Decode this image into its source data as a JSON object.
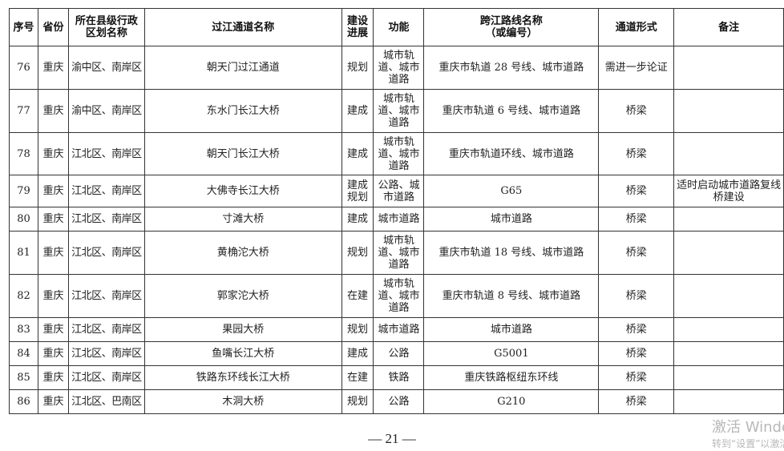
{
  "table": {
    "headers": [
      "序号",
      "省份",
      "所在县级行政区划名称",
      "过江通道名称",
      "建设进展",
      "功能",
      "跨江路线名称（或编号）",
      "通道形式",
      "备注"
    ],
    "rows": [
      {
        "no": "76",
        "province": "重庆",
        "region": "渝中区、南岸区",
        "name": "朝天门过江通道",
        "progress": "规划",
        "function": "城市轨道、城市道路",
        "route": "重庆市轨道 28 号线、城市道路",
        "form": "需进一步论证",
        "note": ""
      },
      {
        "no": "77",
        "province": "重庆",
        "region": "渝中区、南岸区",
        "name": "东水门长江大桥",
        "progress": "建成",
        "function": "城市轨道、城市道路",
        "route": "重庆市轨道 6 号线、城市道路",
        "form": "桥梁",
        "note": ""
      },
      {
        "no": "78",
        "province": "重庆",
        "region": "江北区、南岸区",
        "name": "朝天门长江大桥",
        "progress": "建成",
        "function": "城市轨道、城市道路",
        "route": "重庆市轨道环线、城市道路",
        "form": "桥梁",
        "note": ""
      },
      {
        "no": "79",
        "province": "重庆",
        "region": "江北区、南岸区",
        "name": "大佛寺长江大桥",
        "progress": "建成规划",
        "function": "公路、城市道路",
        "route": "G65",
        "form": "桥梁",
        "note": "适时启动城市道路复线桥建设"
      },
      {
        "no": "80",
        "province": "重庆",
        "region": "江北区、南岸区",
        "name": "寸滩大桥",
        "progress": "建成",
        "function": "城市道路",
        "route": "城市道路",
        "form": "桥梁",
        "note": ""
      },
      {
        "no": "81",
        "province": "重庆",
        "region": "江北区、南岸区",
        "name": "黄桷沱大桥",
        "progress": "规划",
        "function": "城市轨道、城市道路",
        "route": "重庆市轨道 18 号线、城市道路",
        "form": "桥梁",
        "note": ""
      },
      {
        "no": "82",
        "province": "重庆",
        "region": "江北区、南岸区",
        "name": "郭家沱大桥",
        "progress": "在建",
        "function": "城市轨道、城市道路",
        "route": "重庆市轨道 8 号线、城市道路",
        "form": "桥梁",
        "note": ""
      },
      {
        "no": "83",
        "province": "重庆",
        "region": "江北区、南岸区",
        "name": "果园大桥",
        "progress": "规划",
        "function": "城市道路",
        "route": "城市道路",
        "form": "桥梁",
        "note": ""
      },
      {
        "no": "84",
        "province": "重庆",
        "region": "江北区、南岸区",
        "name": "鱼嘴长江大桥",
        "progress": "建成",
        "function": "公路",
        "route": "G5001",
        "form": "桥梁",
        "note": ""
      },
      {
        "no": "85",
        "province": "重庆",
        "region": "江北区、南岸区",
        "name": "铁路东环线长江大桥",
        "progress": "在建",
        "function": "铁路",
        "route": "重庆铁路枢纽东环线",
        "form": "桥梁",
        "note": ""
      },
      {
        "no": "86",
        "province": "重庆",
        "region": "江北区、巴南区",
        "name": "木洞大桥",
        "progress": "规划",
        "function": "公路",
        "route": "G210",
        "form": "桥梁",
        "note": ""
      }
    ]
  },
  "page_number": "— 21 —",
  "watermark": {
    "line1": "激活 Windows",
    "line2": "转到“设置”以激活 Windows。"
  }
}
